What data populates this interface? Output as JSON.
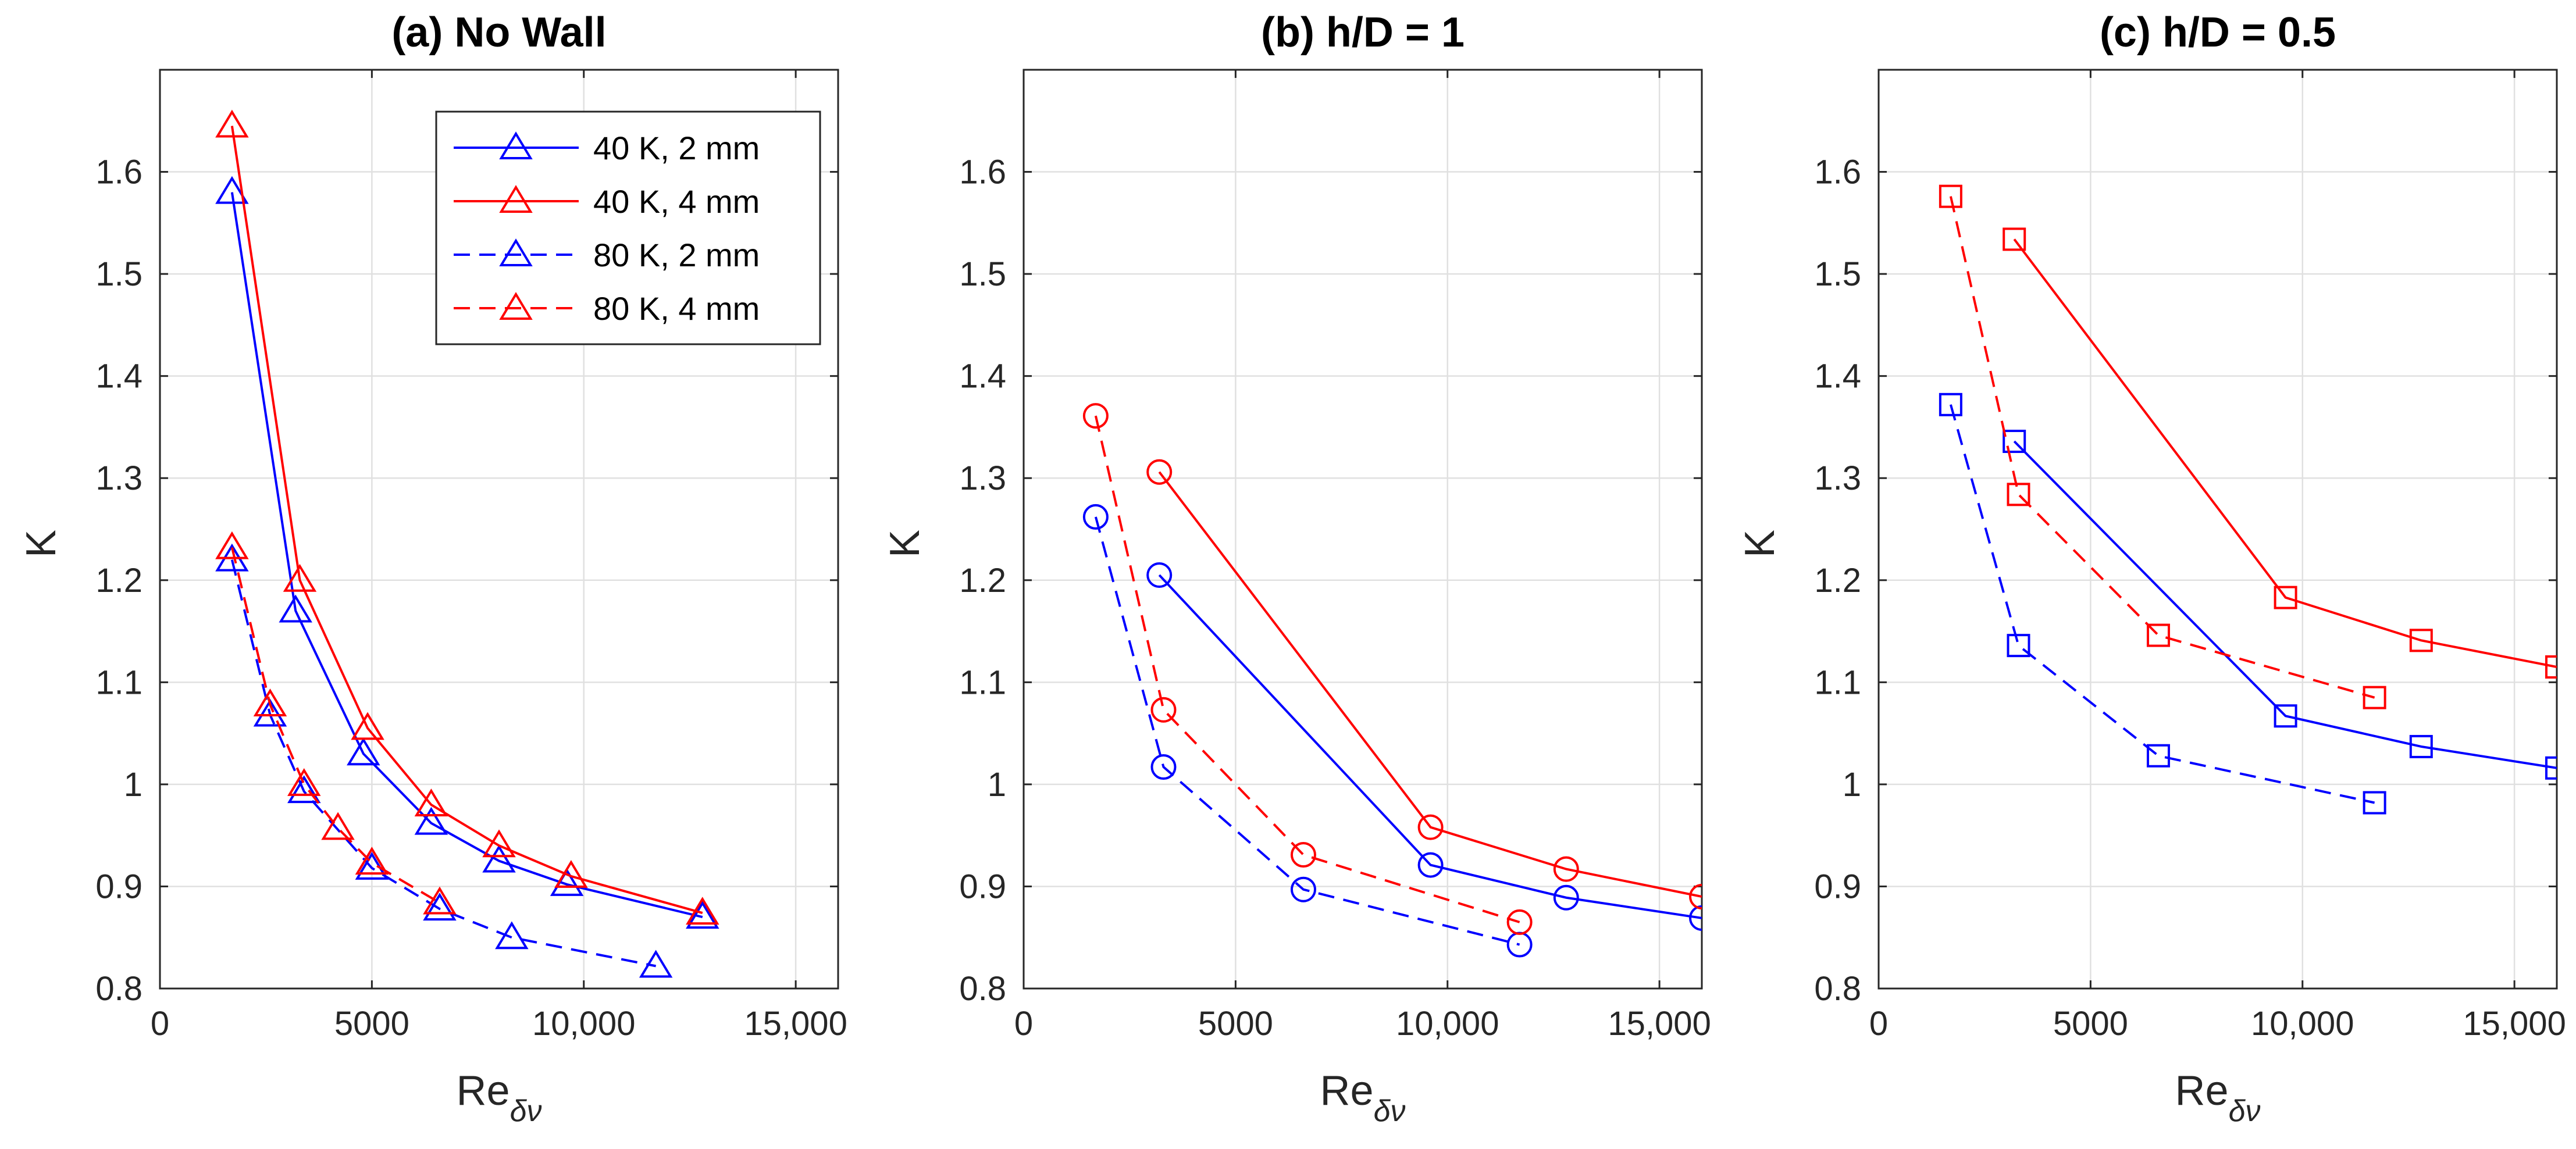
{
  "chart_data": [
    {
      "type": "line",
      "title": "(a) No Wall",
      "xlabel": "Re",
      "xlabel_sub": "δν",
      "ylabel": "K",
      "xlim": [
        0,
        16000
      ],
      "ylim": [
        0.8,
        1.7
      ],
      "xticks": [
        0,
        5000,
        10000,
        15000
      ],
      "xtick_labels": [
        "0",
        "5000",
        "10,000",
        "15,000"
      ],
      "yticks": [
        0.8,
        0.9,
        1.0,
        1.1,
        1.2,
        1.3,
        1.4,
        1.5,
        1.6
      ],
      "ytick_labels": [
        "0.8",
        "0.9",
        "1",
        "1.1",
        "1.2",
        "1.3",
        "1.4",
        "1.5",
        "1.6"
      ],
      "grid": true,
      "legend_position": "top-right",
      "marker": "triangle",
      "series": [
        {
          "name": "40 K, 2 mm",
          "color": "#0000ff",
          "dash": "solid",
          "x": [
            1700,
            3200,
            4800,
            6400,
            8000,
            9600,
            12800
          ],
          "y": [
            1.58,
            1.17,
            1.03,
            0.962,
            0.925,
            0.902,
            0.87
          ]
        },
        {
          "name": "40 K, 4 mm",
          "color": "#ff0000",
          "dash": "solid",
          "x": [
            1700,
            3300,
            4900,
            6400,
            8000,
            9700,
            12800
          ],
          "y": [
            1.645,
            1.2,
            1.055,
            0.98,
            0.94,
            0.91,
            0.874
          ]
        },
        {
          "name": "80 K, 2 mm",
          "color": "#0000ff",
          "dash": "dashed",
          "x": [
            1700,
            2600,
            3400,
            5000,
            6600,
            8300,
            11700
          ],
          "y": [
            1.22,
            1.068,
            0.993,
            0.918,
            0.878,
            0.85,
            0.822
          ]
        },
        {
          "name": "80 K, 4 mm",
          "color": "#ff0000",
          "dash": "dashed",
          "x": [
            1700,
            2600,
            3400,
            4200,
            5000,
            6600
          ],
          "y": [
            1.232,
            1.078,
            1.0,
            0.957,
            0.923,
            0.884
          ]
        }
      ]
    },
    {
      "type": "line",
      "title": "(b) h/D = 1",
      "xlabel": "Re",
      "xlabel_sub": "δν",
      "ylabel": "K",
      "xlim": [
        0,
        16000
      ],
      "ylim": [
        0.8,
        1.7
      ],
      "xticks": [
        0,
        5000,
        10000,
        15000
      ],
      "xtick_labels": [
        "0",
        "5000",
        "10,000",
        "15,000"
      ],
      "yticks": [
        0.8,
        0.9,
        1.0,
        1.1,
        1.2,
        1.3,
        1.4,
        1.5,
        1.6
      ],
      "ytick_labels": [
        "0.8",
        "0.9",
        "1",
        "1.1",
        "1.2",
        "1.3",
        "1.4",
        "1.5",
        "1.6"
      ],
      "grid": true,
      "marker": "circle",
      "series": [
        {
          "name": "40 K, 2 mm",
          "color": "#0000ff",
          "dash": "solid",
          "x": [
            3200,
            9600,
            12800,
            16000
          ],
          "y": [
            1.205,
            0.921,
            0.889,
            0.869
          ]
        },
        {
          "name": "40 K, 4 mm",
          "color": "#ff0000",
          "dash": "solid",
          "x": [
            3200,
            9600,
            12800,
            16000
          ],
          "y": [
            1.306,
            0.958,
            0.917,
            0.89
          ]
        },
        {
          "name": "80 K, 2 mm",
          "color": "#0000ff",
          "dash": "dashed",
          "x": [
            1700,
            3300,
            6600,
            11700
          ],
          "y": [
            1.262,
            1.017,
            0.897,
            0.843
          ]
        },
        {
          "name": "80 K, 4 mm",
          "color": "#ff0000",
          "dash": "dashed",
          "x": [
            1700,
            3300,
            6600,
            11700
          ],
          "y": [
            1.361,
            1.073,
            0.931,
            0.865
          ]
        }
      ]
    },
    {
      "type": "line",
      "title": "(c) h/D = 0.5",
      "xlabel": "Re",
      "xlabel_sub": "δν",
      "ylabel": "K",
      "xlim": [
        0,
        16000
      ],
      "ylim": [
        0.8,
        1.7
      ],
      "xticks": [
        0,
        5000,
        10000,
        15000
      ],
      "xtick_labels": [
        "0",
        "5000",
        "10,000",
        "15,000"
      ],
      "yticks": [
        0.8,
        0.9,
        1.0,
        1.1,
        1.2,
        1.3,
        1.4,
        1.5,
        1.6
      ],
      "ytick_labels": [
        "0.8",
        "0.9",
        "1",
        "1.1",
        "1.2",
        "1.3",
        "1.4",
        "1.5",
        "1.6"
      ],
      "grid": true,
      "marker": "square",
      "series": [
        {
          "name": "40 K, 2 mm",
          "color": "#0000ff",
          "dash": "solid",
          "x": [
            3200,
            9600,
            12800,
            16000
          ],
          "y": [
            1.336,
            1.067,
            1.037,
            1.016
          ]
        },
        {
          "name": "40 K, 4 mm",
          "color": "#ff0000",
          "dash": "solid",
          "x": [
            3200,
            9600,
            12800,
            16000
          ],
          "y": [
            1.534,
            1.183,
            1.141,
            1.115
          ]
        },
        {
          "name": "80 K, 2 mm",
          "color": "#0000ff",
          "dash": "dashed",
          "x": [
            1700,
            3300,
            6600,
            11700
          ],
          "y": [
            1.372,
            1.136,
            1.028,
            0.982
          ]
        },
        {
          "name": "80 K, 4 mm",
          "color": "#ff0000",
          "dash": "dashed",
          "x": [
            1700,
            3300,
            6600,
            11700
          ],
          "y": [
            1.576,
            1.284,
            1.146,
            1.085
          ]
        }
      ]
    }
  ]
}
